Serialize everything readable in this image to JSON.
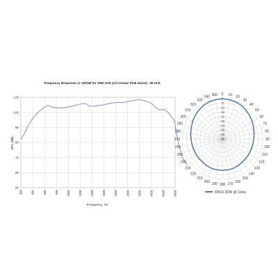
{
  "chart_data": [
    {
      "type": "line",
      "title": "Frequency Response @ 1W/1M for 30W Unit (1/3 Octave Pink Noise) - IB Unit",
      "xlabel": "Frequency, Hz",
      "ylabel": "SPL (dB)",
      "x_ticks": [
        "300",
        "400",
        "600",
        "800",
        "1000",
        "1200",
        "1400",
        "1600",
        "1800",
        "2000",
        "3000",
        "4000",
        "5000",
        "6000"
      ],
      "ylim": [
        50,
        110
      ],
      "y_ticks": [
        50,
        60,
        70,
        80,
        90,
        100,
        110
      ],
      "grid": true,
      "series": [
        {
          "color": "#8b98c2",
          "points": [
            [
              0.0,
              82
            ],
            [
              0.3,
              86
            ],
            [
              0.6,
              91
            ],
            [
              1.0,
              96
            ],
            [
              1.5,
              100.5
            ],
            [
              2.0,
              103.5
            ],
            [
              2.3,
              104.5
            ],
            [
              2.6,
              103.5
            ],
            [
              3.0,
              103
            ],
            [
              3.5,
              103
            ],
            [
              4.0,
              103.5
            ],
            [
              4.5,
              104.5
            ],
            [
              5.0,
              105.5
            ],
            [
              5.4,
              106
            ],
            [
              5.7,
              104.5
            ],
            [
              6.0,
              104
            ],
            [
              6.5,
              104.5
            ],
            [
              7.0,
              105
            ],
            [
              7.5,
              106
            ],
            [
              8.0,
              106.5
            ],
            [
              8.5,
              106.5
            ],
            [
              9.0,
              107
            ],
            [
              9.5,
              108
            ],
            [
              10.0,
              108.5
            ],
            [
              10.5,
              107.5
            ],
            [
              11.0,
              106
            ],
            [
              11.4,
              103
            ],
            [
              11.7,
              101.5
            ],
            [
              12.1,
              102
            ],
            [
              12.4,
              100
            ],
            [
              12.7,
              97
            ],
            [
              12.95,
              94
            ],
            [
              13.2,
              82
            ],
            [
              13.6,
              70
            ],
            [
              14.0,
              65
            ]
          ]
        }
      ]
    },
    {
      "type": "polar",
      "angle_ticks": [
        "0",
        "10",
        "20",
        "30",
        "40",
        "50",
        "60",
        "70",
        "80",
        "90",
        "100",
        "110",
        "120",
        "130",
        "140",
        "150",
        "160",
        "170",
        "180",
        "190",
        "200",
        "210",
        "220",
        "230",
        "240",
        "250",
        "260",
        "270",
        "280",
        "290",
        "300",
        "310",
        "320",
        "330",
        "340",
        "350"
      ],
      "radial_ticks": [
        "0",
        "-5",
        "-10",
        "-15",
        "-20",
        "-25",
        "-30",
        "-35",
        "-40",
        "-45"
      ],
      "radial_range": [
        -45,
        0
      ],
      "legend": {
        "label": "DB16 30W @ 1kHz",
        "color": "#4f79a8",
        "position": "bottom"
      },
      "series": [
        {
          "name": "DB16 30W @ 1kHz",
          "angles": [
            0,
            10,
            20,
            30,
            40,
            50,
            60,
            70,
            80,
            90,
            100,
            110,
            120,
            130,
            140,
            150,
            160,
            170,
            180,
            190,
            200,
            210,
            220,
            230,
            240,
            250,
            260,
            270,
            280,
            290,
            300,
            310,
            320,
            330,
            340,
            350
          ],
          "values": [
            0,
            -0.5,
            -1,
            -2,
            -3.5,
            -5,
            -6.5,
            -8,
            -9,
            -10,
            -10.5,
            -11,
            -11,
            -11,
            -11,
            -10.5,
            -10,
            -10,
            -10,
            -10,
            -10,
            -10.5,
            -11,
            -11,
            -11,
            -11,
            -10.5,
            -10,
            -9,
            -8,
            -6.5,
            -5,
            -3.5,
            -2,
            -1,
            -0.5
          ]
        }
      ]
    }
  ]
}
